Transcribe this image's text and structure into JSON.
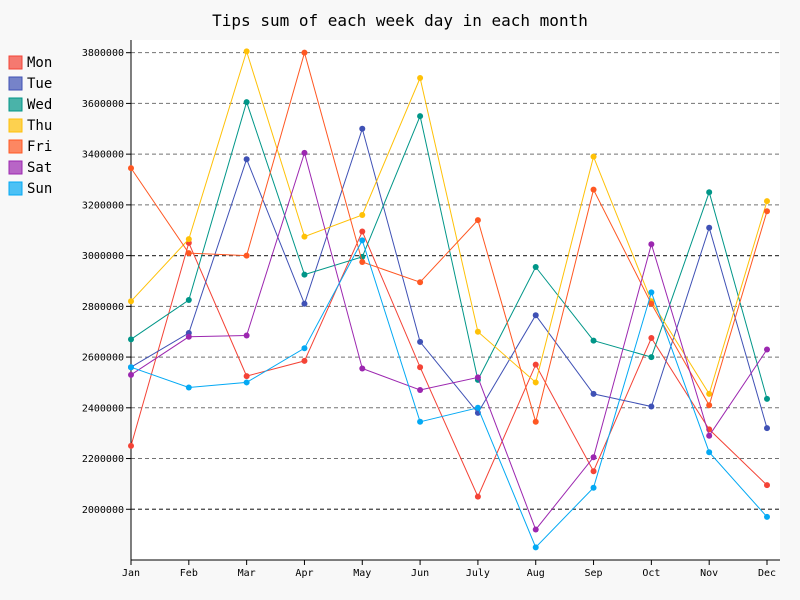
{
  "chart_data": {
    "type": "line",
    "title": "Tips sum of each week day in each month",
    "xlabel": "",
    "ylabel": "",
    "categories": [
      "Jan",
      "Feb",
      "Mar",
      "Apr",
      "May",
      "Jun",
      "July",
      "Aug",
      "Sep",
      "Oct",
      "Nov",
      "Dec"
    ],
    "ylim": [
      1800000,
      3850000
    ],
    "y_ticks": [
      2000000,
      2200000,
      2400000,
      2600000,
      2800000,
      3000000,
      3200000,
      3400000,
      3600000,
      3800000
    ],
    "y_tick_labels": [
      "2000000",
      "2200000",
      "2400000",
      "2600000",
      "2800000",
      "3000000",
      "3200000",
      "3400000",
      "3600000",
      "3800000"
    ],
    "major_gridlines": [
      2000000,
      3000000
    ],
    "grid": true,
    "legend_position": "top-left",
    "series": [
      {
        "name": "Mon",
        "color": "#f44336",
        "values": [
          2250000,
          3050000,
          2525000,
          2585000,
          3095000,
          2560000,
          2050000,
          2570000,
          2150000,
          2675000,
          2315000,
          2095000
        ]
      },
      {
        "name": "Tue",
        "color": "#3f51b5",
        "values": [
          2560000,
          2695000,
          3380000,
          2810000,
          3500000,
          2660000,
          2380000,
          2765000,
          2455000,
          2405000,
          3110000,
          2320000
        ]
      },
      {
        "name": "Wed",
        "color": "#009688",
        "values": [
          2670000,
          2825000,
          3605000,
          2925000,
          2995000,
          3550000,
          2510000,
          2955000,
          2665000,
          2600000,
          3250000,
          2435000
        ]
      },
      {
        "name": "Thu",
        "color": "#ffc107",
        "values": [
          2820000,
          3065000,
          3805000,
          3075000,
          3160000,
          3700000,
          2700000,
          2500000,
          3390000,
          2820000,
          2455000,
          3215000
        ]
      },
      {
        "name": "Fri",
        "color": "#ff5722",
        "values": [
          3345000,
          3010000,
          3000000,
          3800000,
          2975000,
          2895000,
          3140000,
          2345000,
          3260000,
          2810000,
          2410000,
          3175000
        ]
      },
      {
        "name": "Sat",
        "color": "#9c27b0",
        "values": [
          2530000,
          2680000,
          2685000,
          3405000,
          2555000,
          2470000,
          2520000,
          1920000,
          2205000,
          3045000,
          2290000,
          2630000
        ]
      },
      {
        "name": "Sun",
        "color": "#03a9f4",
        "values": [
          2560000,
          2480000,
          2500000,
          2635000,
          3060000,
          2345000,
          2400000,
          1850000,
          2085000,
          2855000,
          2225000,
          1970000
        ]
      }
    ]
  }
}
